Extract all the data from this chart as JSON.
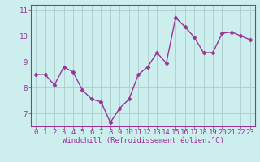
{
  "x": [
    0,
    1,
    2,
    3,
    4,
    5,
    6,
    7,
    8,
    9,
    10,
    11,
    12,
    13,
    14,
    15,
    16,
    17,
    18,
    19,
    20,
    21,
    22,
    23
  ],
  "y": [
    8.5,
    8.5,
    8.1,
    8.8,
    8.6,
    7.9,
    7.55,
    7.45,
    6.65,
    7.2,
    7.55,
    8.5,
    8.8,
    9.35,
    8.95,
    10.7,
    10.35,
    9.95,
    9.35,
    9.35,
    10.1,
    10.15,
    10.0,
    9.85
  ],
  "line_color": "#993399",
  "marker": "D",
  "marker_size": 2.5,
  "bg_color": "#cceeed",
  "grid_color": "#aacccc",
  "xlabel": "Windchill (Refroidissement éolien,°C)",
  "xlim": [
    -0.5,
    23.5
  ],
  "ylim": [
    6.5,
    11.2
  ],
  "yticks": [
    7,
    8,
    9,
    10,
    11
  ],
  "xticks": [
    0,
    1,
    2,
    3,
    4,
    5,
    6,
    7,
    8,
    9,
    10,
    11,
    12,
    13,
    14,
    15,
    16,
    17,
    18,
    19,
    20,
    21,
    22,
    23
  ],
  "label_fontsize": 6.5,
  "tick_fontsize": 6.5,
  "line_width": 1.0,
  "spine_color": "#7777aa"
}
